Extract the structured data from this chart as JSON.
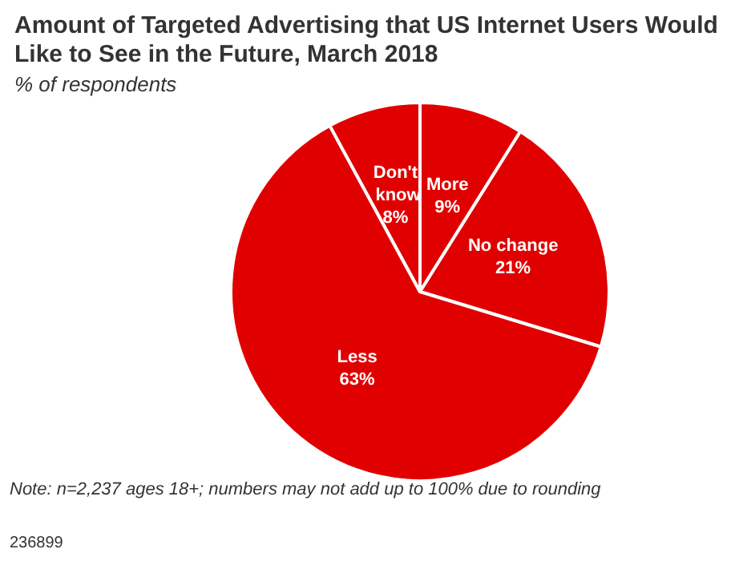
{
  "chart_data": {
    "type": "pie",
    "title": "Amount of Targeted Advertising that US Internet Users Would Like to See in the Future, March 2018",
    "subtitle": "% of respondents",
    "categories": [
      "More",
      "No change",
      "Less",
      "Don't know"
    ],
    "values": [
      9,
      21,
      63,
      8
    ],
    "value_labels": [
      "9%",
      "21%",
      "63%",
      "8%"
    ],
    "colors": [
      "#e00000",
      "#e00000",
      "#e00000",
      "#e00000"
    ],
    "legend": false,
    "annotations": [
      "Note: n=2,237 ages 18+; numbers may not add up to 100% due to rounding",
      "236899"
    ]
  }
}
